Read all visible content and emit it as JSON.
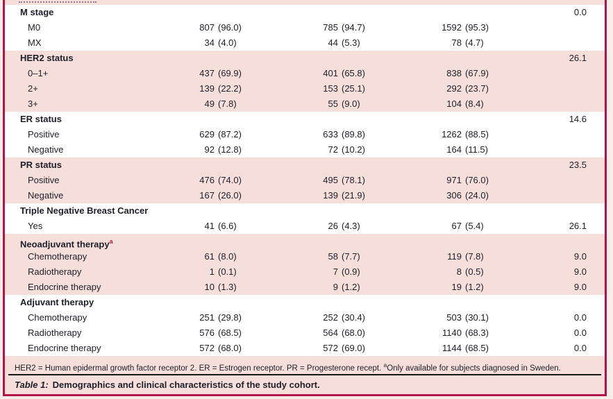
{
  "colors": {
    "accent_border": "#b5124a",
    "shaded_row_bg": "#f6dfdb",
    "plain_row_bg": "#ffffff",
    "text": "#20202c",
    "superscript_red": "#c11a4b",
    "rule": "#151515"
  },
  "table": {
    "sections": [
      {
        "label": "M stage",
        "sup": "",
        "missing": "0.0",
        "shaded": false,
        "rows": [
          {
            "label": "M0",
            "cells": [
              [
                "807",
                "(96.0)"
              ],
              [
                "785",
                "(94.7)"
              ],
              [
                "1592",
                "(95.3)"
              ]
            ],
            "missing": ""
          },
          {
            "label": "MX",
            "cells": [
              [
                "34",
                "(4.0)"
              ],
              [
                "44",
                "(5.3)"
              ],
              [
                "78",
                "(4.7)"
              ]
            ],
            "missing": ""
          }
        ]
      },
      {
        "label": "HER2 status",
        "sup": "",
        "missing": "26.1",
        "shaded": true,
        "rows": [
          {
            "label": "0–1+",
            "cells": [
              [
                "437",
                "(69.9)"
              ],
              [
                "401",
                "(65.8)"
              ],
              [
                "838",
                "(67.9)"
              ]
            ],
            "missing": ""
          },
          {
            "label": "2+",
            "cells": [
              [
                "139",
                "(22.2)"
              ],
              [
                "153",
                "(25.1)"
              ],
              [
                "292",
                "(23.7)"
              ]
            ],
            "missing": ""
          },
          {
            "label": "3+",
            "cells": [
              [
                "49",
                "(7.8)"
              ],
              [
                "55",
                "(9.0)"
              ],
              [
                "104",
                "(8.4)"
              ]
            ],
            "missing": ""
          }
        ]
      },
      {
        "label": "ER status",
        "sup": "",
        "missing": "14.6",
        "shaded": false,
        "rows": [
          {
            "label": "Positive",
            "cells": [
              [
                "629",
                "(87.2)"
              ],
              [
                "633",
                "(89.8)"
              ],
              [
                "1262",
                "(88.5)"
              ]
            ],
            "missing": ""
          },
          {
            "label": "Negative",
            "cells": [
              [
                "92",
                "(12.8)"
              ],
              [
                "72",
                "(10.2)"
              ],
              [
                "164",
                "(11.5)"
              ]
            ],
            "missing": ""
          }
        ]
      },
      {
        "label": "PR status",
        "sup": "",
        "missing": "23.5",
        "shaded": true,
        "rows": [
          {
            "label": "Positive",
            "cells": [
              [
                "476",
                "(74.0)"
              ],
              [
                "495",
                "(78.1)"
              ],
              [
                "971",
                "(76.0)"
              ]
            ],
            "missing": ""
          },
          {
            "label": "Negative",
            "cells": [
              [
                "167",
                "(26.0)"
              ],
              [
                "139",
                "(21.9)"
              ],
              [
                "306",
                "(24.0)"
              ]
            ],
            "missing": ""
          }
        ]
      },
      {
        "label": "Triple Negative Breast Cancer",
        "sup": "",
        "missing": "",
        "shaded": false,
        "rows": [
          {
            "label": "Yes",
            "cells": [
              [
                "41",
                "(6.6)"
              ],
              [
                "26",
                "(4.3)"
              ],
              [
                "67",
                "(5.4)"
              ]
            ],
            "missing": "26.1"
          }
        ]
      },
      {
        "label": "Neoadjuvant therapy",
        "sup": "a",
        "missing": "",
        "shaded": true,
        "rows": [
          {
            "label": "Chemotherapy",
            "cells": [
              [
                "61",
                "(8.0)"
              ],
              [
                "58",
                "(7.7)"
              ],
              [
                "119",
                "(7.8)"
              ]
            ],
            "missing": "9.0"
          },
          {
            "label": "Radiotherapy",
            "cells": [
              [
                "1",
                "(0.1)"
              ],
              [
                "7",
                "(0.9)"
              ],
              [
                "8",
                "(0.5)"
              ]
            ],
            "missing": "9.0"
          },
          {
            "label": "Endocrine therapy",
            "cells": [
              [
                "10",
                "(1.3)"
              ],
              [
                "9",
                "(1.2)"
              ],
              [
                "19",
                "(1.2)"
              ]
            ],
            "missing": "9.0"
          }
        ]
      },
      {
        "label": "Adjuvant therapy",
        "sup": "",
        "missing": "",
        "shaded": false,
        "rows": [
          {
            "label": "Chemotherapy",
            "cells": [
              [
                "251",
                "(29.8)"
              ],
              [
                "252",
                "(30.4)"
              ],
              [
                "503",
                "(30.1)"
              ]
            ],
            "missing": "0.0"
          },
          {
            "label": "Radiotherapy",
            "cells": [
              [
                "576",
                "(68.5)"
              ],
              [
                "564",
                "(68.0)"
              ],
              [
                "1140",
                "(68.3)"
              ]
            ],
            "missing": "0.0"
          },
          {
            "label": "Endocrine therapy",
            "cells": [
              [
                "572",
                "(68.0)"
              ],
              [
                "572",
                "(69.0)"
              ],
              [
                "1144",
                "(68.5)"
              ]
            ],
            "missing": "0.0"
          }
        ]
      }
    ]
  },
  "footnote": {
    "text_before_sup": "HER2 = Human epidermal growth factor receptor 2. ER = Estrogen receptor. PR = Progesterone recept. ",
    "sup": "a",
    "text_after_sup": "Only available for subjects diagnosed in Sweden."
  },
  "caption": {
    "label": "Table 1:",
    "text": "Demographics and clinical characteristics of the study cohort."
  }
}
